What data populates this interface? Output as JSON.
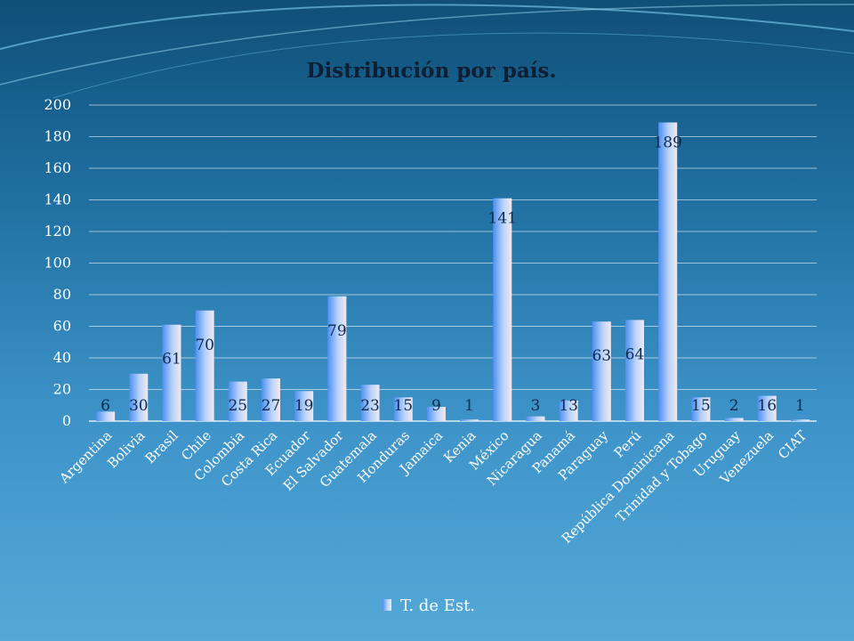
{
  "chart_data": {
    "type": "bar",
    "title": "Distribución por país.",
    "categories": [
      "Argentina",
      "Bolivia",
      "Brasil",
      "Chile",
      "Colombia",
      "Costa Rica",
      "Ecuador",
      "El Salvador",
      "Guatemala",
      "Honduras",
      "Jamaica",
      "Kenia",
      "México",
      "Nicaragua",
      "Panamá",
      "Paraguay",
      "Perú",
      "República Dominicana",
      "Trinidad y Tobago",
      "Uruguay",
      "Venezuela",
      "CIAT"
    ],
    "series": [
      {
        "name": "T. de Est.",
        "values": [
          6,
          30,
          61,
          70,
          25,
          27,
          19,
          79,
          23,
          15,
          9,
          1,
          141,
          3,
          13,
          63,
          64,
          189,
          15,
          2,
          16,
          1
        ]
      }
    ],
    "ylim": [
      0,
      200
    ],
    "yticks": [
      0,
      20,
      40,
      60,
      80,
      100,
      120,
      140,
      160,
      180,
      200
    ],
    "grid": true,
    "legend_position": "bottom"
  }
}
